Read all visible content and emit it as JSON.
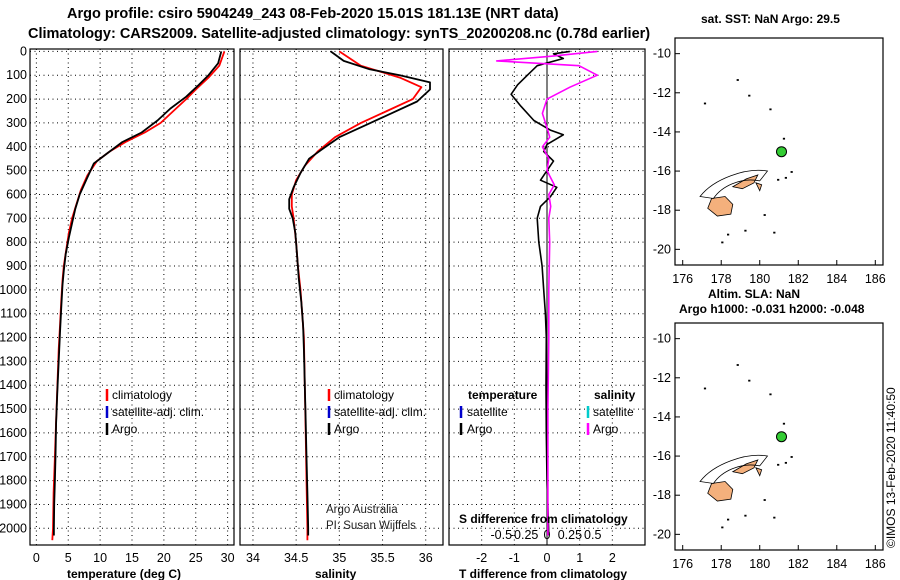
{
  "title": {
    "line1": "Argo profile: csiro 5904249_243 08-Feb-2020 15.01S 181.13E (NRT data)",
    "line2": "Climatology: CARS2009. Satellite-adjusted climatology: synTS_20200208.nc (0.78d earlier)"
  },
  "colors": {
    "climatology": "#ff0000",
    "satellite": "#0000cc",
    "argo": "#000000",
    "salinity_diff": "#ff00ff",
    "salinity_sat": "#00cccc",
    "land": "#f4b07c",
    "argo_marker": "#33cc33"
  },
  "depth_ticks": [
    "0",
    "100",
    "200",
    "300",
    "400",
    "500",
    "600",
    "700",
    "800",
    "900",
    "1000",
    "1100",
    "1200",
    "1300",
    "1400",
    "1500",
    "1600",
    "1700",
    "1800",
    "1900",
    "2000"
  ],
  "temp_panel": {
    "xticks": [
      "0",
      "5",
      "10",
      "15",
      "20",
      "25",
      "30"
    ],
    "xlabel": "temperature (deg C)",
    "legend": {
      "clim": "climatology",
      "sat": "satellite-adj. clim.",
      "argo": "Argo"
    }
  },
  "sal_panel": {
    "xticks": [
      "34",
      "34.5",
      "35",
      "35.5",
      "36"
    ],
    "xlabel": "salinity",
    "legend": {
      "clim": "climatology",
      "sat": "satellite-adj. clim.",
      "argo": "Argo"
    },
    "credit1": "Argo Australia",
    "credit2": "PI: Susan Wijffels"
  },
  "diff_panel": {
    "xticks": [
      "-2",
      "-1",
      "0",
      "1",
      "2"
    ],
    "sticks": [
      "-0.5",
      "-0.25",
      "0",
      "0.25",
      "0.5"
    ],
    "xlabel": "T difference from climatology",
    "slabel": "S difference from climatology",
    "legend": {
      "temperature": "temperature",
      "salinity": "salinity",
      "satellite": "satellite",
      "argo": "Argo"
    }
  },
  "map_top": {
    "title": "sat. SST: NaN Argo: 29.5",
    "yticks": [
      "-10",
      "-12",
      "-14",
      "-16",
      "-18",
      "-20"
    ],
    "xticks": [
      "176",
      "178",
      "180",
      "182",
      "184",
      "186"
    ]
  },
  "map_bottom": {
    "title1": "Altim. SLA: NaN",
    "title2": "Argo h1000: -0.031 h2000: -0.048",
    "yticks": [
      "-10",
      "-12",
      "-14",
      "-16",
      "-18",
      "-20"
    ],
    "xticks": [
      "176",
      "178",
      "180",
      "182",
      "184",
      "186"
    ]
  },
  "footer": "©IMOS 13-Feb-2020 11:40:50",
  "chart_data": [
    {
      "type": "line",
      "name": "temperature profile",
      "xlabel": "temperature (deg C)",
      "ylabel": "depth",
      "xlim": [
        -1,
        31
      ],
      "ylim": [
        2070,
        -10
      ],
      "series": [
        {
          "name": "climatology",
          "points": [
            [
              29.5,
              0
            ],
            [
              28.7,
              60
            ],
            [
              27,
              110
            ],
            [
              25,
              160
            ],
            [
              23.5,
              200
            ],
            [
              21.5,
              250
            ],
            [
              19.5,
              300
            ],
            [
              17,
              340
            ],
            [
              14,
              380
            ],
            [
              11.5,
              420
            ],
            [
              9.5,
              460
            ],
            [
              8,
              520
            ],
            [
              7,
              580
            ],
            [
              6.3,
              640
            ],
            [
              5.6,
              700
            ],
            [
              5.1,
              760
            ],
            [
              4.7,
              830
            ],
            [
              4.3,
              900
            ],
            [
              4.1,
              960
            ],
            [
              3.9,
              1050
            ],
            [
              3.7,
              1150
            ],
            [
              3.5,
              1250
            ],
            [
              3.3,
              1400
            ],
            [
              3.1,
              1550
            ],
            [
              2.9,
              1700
            ],
            [
              2.7,
              1850
            ],
            [
              2.6,
              2000
            ],
            [
              2.5,
              2050
            ]
          ]
        },
        {
          "name": "Argo",
          "points": [
            [
              29,
              0
            ],
            [
              28.5,
              50
            ],
            [
              27,
              100
            ],
            [
              25.5,
              140
            ],
            [
              23.5,
              190
            ],
            [
              21,
              240
            ],
            [
              19,
              290
            ],
            [
              16.5,
              340
            ],
            [
              13.5,
              380
            ],
            [
              11,
              430
            ],
            [
              9,
              470
            ],
            [
              7.8,
              540
            ],
            [
              6.8,
              600
            ],
            [
              6.1,
              660
            ],
            [
              5.6,
              720
            ],
            [
              5.1,
              780
            ],
            [
              4.6,
              850
            ],
            [
              4.3,
              920
            ],
            [
              4.1,
              980
            ],
            [
              3.9,
              1080
            ],
            [
              3.7,
              1180
            ],
            [
              3.5,
              1300
            ],
            [
              3.3,
              1420
            ],
            [
              3.1,
              1560
            ],
            [
              3,
              1700
            ],
            [
              2.9,
              1800
            ],
            [
              2.8,
              1900
            ],
            [
              2.75,
              2000
            ],
            [
              2.75,
              2030
            ]
          ]
        }
      ]
    },
    {
      "type": "line",
      "name": "salinity profile",
      "xlabel": "salinity",
      "ylabel": "depth",
      "xlim": [
        33.85,
        36.2
      ],
      "ylim": [
        2070,
        -10
      ],
      "series": [
        {
          "name": "climatology",
          "points": [
            [
              35,
              0
            ],
            [
              35.25,
              60
            ],
            [
              35.7,
              110
            ],
            [
              35.95,
              150
            ],
            [
              35.85,
              200
            ],
            [
              35.55,
              250
            ],
            [
              35.25,
              300
            ],
            [
              34.95,
              360
            ],
            [
              34.75,
              420
            ],
            [
              34.6,
              480
            ],
            [
              34.5,
              540
            ],
            [
              34.45,
              600
            ],
            [
              34.45,
              650
            ],
            [
              34.47,
              700
            ],
            [
              34.5,
              800
            ],
            [
              34.52,
              900
            ],
            [
              34.55,
              1000
            ],
            [
              34.57,
              1100
            ],
            [
              34.59,
              1200
            ],
            [
              34.6,
              1400
            ],
            [
              34.61,
              1600
            ],
            [
              34.62,
              1800
            ],
            [
              34.63,
              2000
            ],
            [
              34.63,
              2050
            ]
          ]
        },
        {
          "name": "Argo",
          "points": [
            [
              34.9,
              0
            ],
            [
              35.05,
              40
            ],
            [
              35.35,
              75
            ],
            [
              35.7,
              100
            ],
            [
              36.05,
              130
            ],
            [
              36.05,
              160
            ],
            [
              35.9,
              210
            ],
            [
              35.6,
              260
            ],
            [
              35.3,
              310
            ],
            [
              35,
              360
            ],
            [
              34.8,
              410
            ],
            [
              34.65,
              450
            ],
            [
              34.55,
              510
            ],
            [
              34.47,
              570
            ],
            [
              34.42,
              620
            ],
            [
              34.42,
              660
            ],
            [
              34.46,
              700
            ],
            [
              34.49,
              760
            ],
            [
              34.51,
              850
            ],
            [
              34.53,
              950
            ],
            [
              34.56,
              1050
            ],
            [
              34.58,
              1150
            ],
            [
              34.59,
              1250
            ],
            [
              34.6,
              1400
            ],
            [
              34.61,
              1550
            ],
            [
              34.62,
              1700
            ],
            [
              34.63,
              1850
            ],
            [
              34.64,
              2000
            ],
            [
              34.64,
              2030
            ]
          ]
        }
      ]
    },
    {
      "type": "line",
      "name": "difference from climatology",
      "xlabel": "T difference from climatology",
      "xlim": [
        -3,
        3
      ],
      "ylim": [
        2070,
        -10
      ],
      "series": [
        {
          "name": "temperature (Argo)",
          "points": [
            [
              0.7,
              0
            ],
            [
              0.2,
              10
            ],
            [
              0.5,
              30
            ],
            [
              -0.3,
              60
            ],
            [
              -0.6,
              100
            ],
            [
              -0.9,
              140
            ],
            [
              -1.1,
              180
            ],
            [
              -0.8,
              230
            ],
            [
              -0.4,
              290
            ],
            [
              0.1,
              330
            ],
            [
              0.5,
              350
            ],
            [
              0,
              390
            ],
            [
              -0.1,
              420
            ],
            [
              0.2,
              460
            ],
            [
              0,
              500
            ],
            [
              -0.2,
              540
            ],
            [
              0.3,
              570
            ],
            [
              0.1,
              610
            ],
            [
              -0.2,
              650
            ],
            [
              -0.3,
              700
            ],
            [
              -0.25,
              800
            ],
            [
              -0.15,
              900
            ],
            [
              -0.1,
              1000
            ],
            [
              -0.05,
              1100
            ],
            [
              -0.02,
              1200
            ],
            [
              -0.03,
              1400
            ],
            [
              -0.02,
              1600
            ],
            [
              0,
              1800
            ],
            [
              0.05,
              2000
            ],
            [
              0.05,
              2030
            ]
          ]
        },
        {
          "name": "salinity (Argo)",
          "points": [
            [
              0.55,
              0
            ],
            [
              0.05,
              20
            ],
            [
              -0.55,
              40
            ],
            [
              0.35,
              60
            ],
            [
              0.55,
              100
            ],
            [
              0.25,
              150
            ],
            [
              0,
              200
            ],
            [
              -0.05,
              260
            ],
            [
              0,
              320
            ],
            [
              0.03,
              360
            ],
            [
              -0.05,
              400
            ],
            [
              0.02,
              450
            ],
            [
              0,
              500
            ],
            [
              0.08,
              560
            ],
            [
              0.02,
              600
            ],
            [
              0.04,
              650
            ],
            [
              0.02,
              700
            ],
            [
              0.03,
              800
            ],
            [
              0.02,
              1000
            ],
            [
              0.02,
              1200
            ],
            [
              0.01,
              1500
            ],
            [
              0.01,
              1800
            ],
            [
              0.01,
              2030
            ]
          ]
        }
      ]
    }
  ]
}
